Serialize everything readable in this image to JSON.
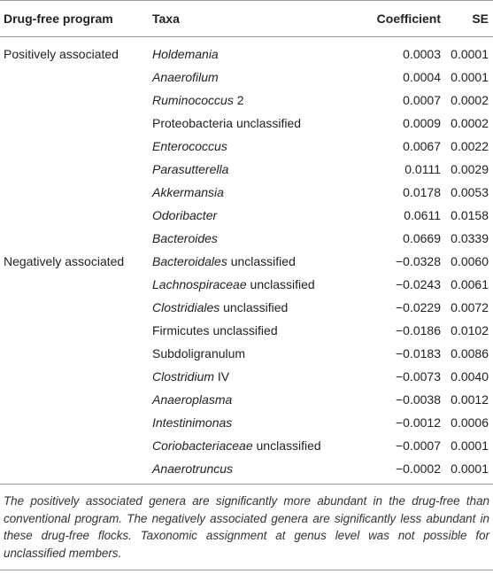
{
  "header": {
    "col_program": "Drug-free program",
    "col_taxa": "Taxa",
    "col_coefficient": "Coefficient",
    "col_se": "SE"
  },
  "rows": [
    {
      "group": "Positively associated",
      "taxa_italic": "Holdemania",
      "taxa_plain": "",
      "coefficient": "0.0003",
      "se": "0.0001"
    },
    {
      "group": "",
      "taxa_italic": "Anaerofilum",
      "taxa_plain": "",
      "coefficient": "0.0004",
      "se": "0.0001"
    },
    {
      "group": "",
      "taxa_italic": "Ruminococcus",
      "taxa_plain": " 2",
      "coefficient": "0.0007",
      "se": "0.0002"
    },
    {
      "group": "",
      "taxa_italic": "",
      "taxa_plain": "Proteobacteria unclassified",
      "coefficient": "0.0009",
      "se": "0.0002"
    },
    {
      "group": "",
      "taxa_italic": "Enterococcus",
      "taxa_plain": "",
      "coefficient": "0.0067",
      "se": "0.0022"
    },
    {
      "group": "",
      "taxa_italic": "Parasutterella",
      "taxa_plain": "",
      "coefficient": "0.0111",
      "se": "0.0029"
    },
    {
      "group": "",
      "taxa_italic": "Akkermansia",
      "taxa_plain": "",
      "coefficient": "0.0178",
      "se": "0.0053"
    },
    {
      "group": "",
      "taxa_italic": "Odoribacter",
      "taxa_plain": "",
      "coefficient": "0.0611",
      "se": "0.0158"
    },
    {
      "group": "",
      "taxa_italic": "Bacteroides",
      "taxa_plain": "",
      "coefficient": "0.0669",
      "se": "0.0339"
    },
    {
      "group": "Negatively associated",
      "taxa_italic": "Bacteroidales",
      "taxa_plain": " unclassified",
      "coefficient": "−0.0328",
      "se": "0.0060"
    },
    {
      "group": "",
      "taxa_italic": "Lachnospiraceae",
      "taxa_plain": " unclassified",
      "coefficient": "−0.0243",
      "se": "0.0061"
    },
    {
      "group": "",
      "taxa_italic": "Clostridiales",
      "taxa_plain": " unclassified",
      "coefficient": "−0.0229",
      "se": "0.0072"
    },
    {
      "group": "",
      "taxa_italic": "",
      "taxa_plain": "Firmicutes unclassified",
      "coefficient": "−0.0186",
      "se": "0.0102"
    },
    {
      "group": "",
      "taxa_italic": "",
      "taxa_plain": "Subdoligranulum",
      "coefficient": "−0.0183",
      "se": "0.0086"
    },
    {
      "group": "",
      "taxa_italic": "Clostridium",
      "taxa_plain": " IV",
      "coefficient": "−0.0073",
      "se": "0.0040"
    },
    {
      "group": "",
      "taxa_italic": "Anaeroplasma",
      "taxa_plain": "",
      "coefficient": "−0.0038",
      "se": "0.0012"
    },
    {
      "group": "",
      "taxa_italic": "Intestinimonas",
      "taxa_plain": "",
      "coefficient": "−0.0012",
      "se": "0.0006"
    },
    {
      "group": "",
      "taxa_italic": "Coriobacteriaceae",
      "taxa_plain": " unclassified",
      "coefficient": "−0.0007",
      "se": "0.0001"
    },
    {
      "group": "",
      "taxa_italic": "Anaerotruncus",
      "taxa_plain": "",
      "coefficient": "−0.0002",
      "se": "0.0001"
    }
  ],
  "footnote": "The positively associated genera are significantly more abundant in the drug-free than conventional program. The negatively associated genera are significantly less abundant in these drug-free flocks. Taxonomic assignment at genus level was not possible for unclassified members."
}
